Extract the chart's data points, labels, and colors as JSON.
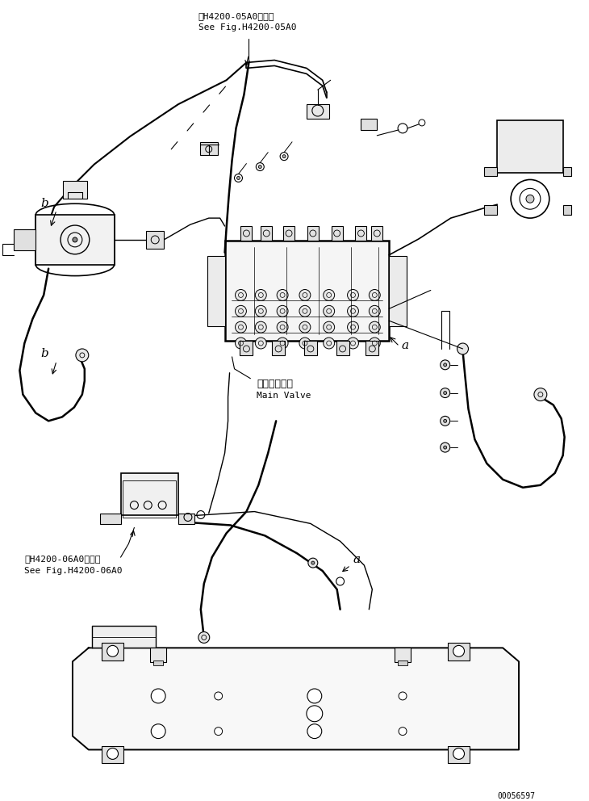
{
  "background_color": "#ffffff",
  "line_color": "#000000",
  "fig_width": 7.3,
  "fig_height": 9.92,
  "dpi": 100,
  "text_top1": "第H4200-05A0図参照",
  "text_top2": "See Fig.H4200-05A0",
  "text_main_valve_jp": "メインバルブ",
  "text_main_valve_en": "Main Valve",
  "text_bottom1": "第H4200-06A0図参照",
  "text_bottom2": "See Fig.H4200-06A0",
  "text_part_num": "00056597",
  "label_a1": "a",
  "label_b1": "b",
  "label_a2": "a",
  "label_b2": "b"
}
